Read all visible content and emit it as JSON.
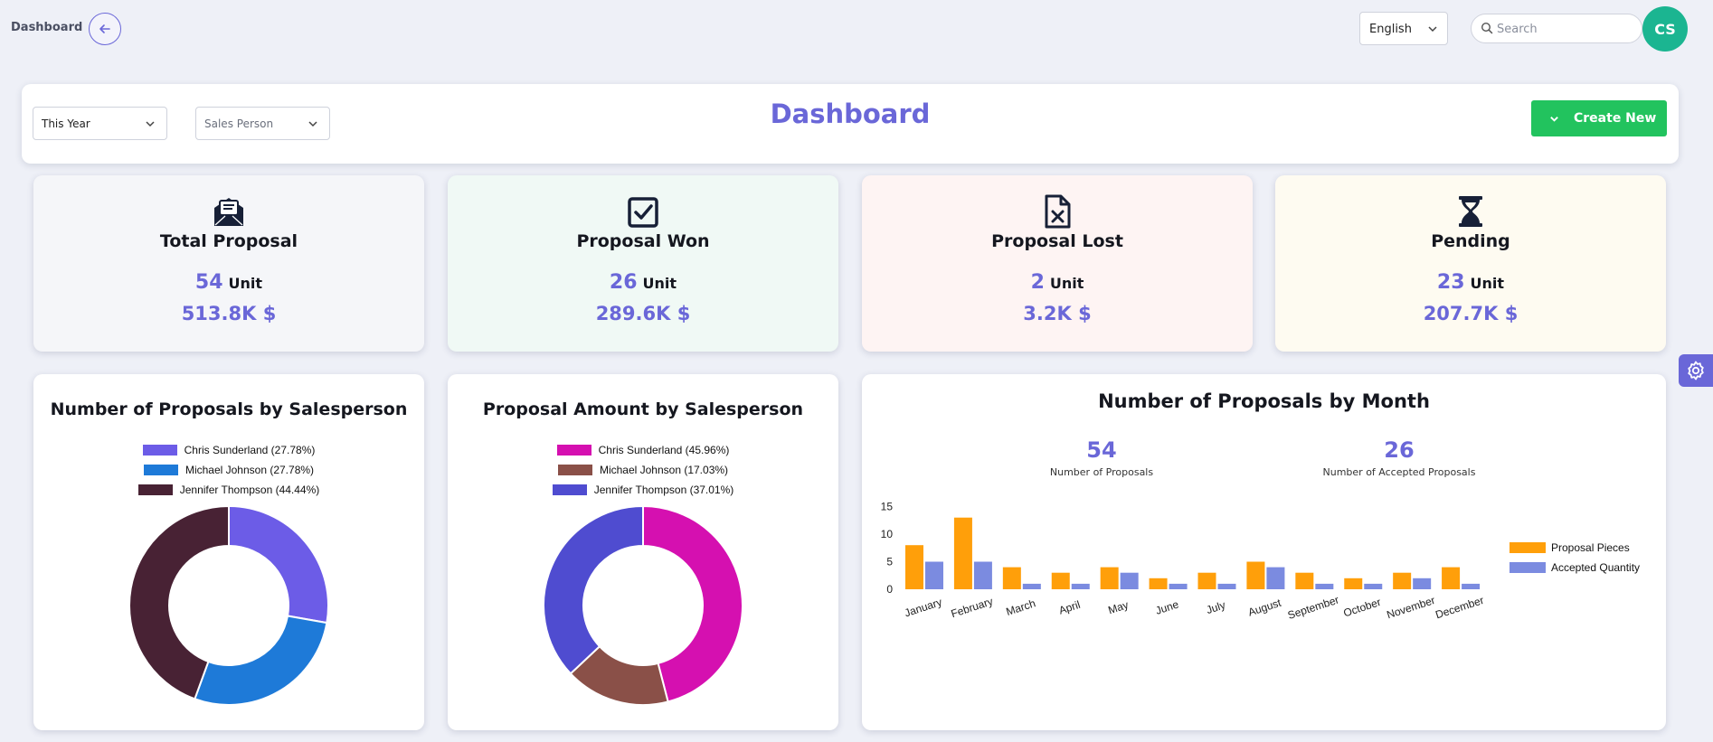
{
  "topbar": {
    "breadcrumb": "Dashboard",
    "language": "English",
    "search_placeholder": "Search",
    "avatar_initials": "CS"
  },
  "header": {
    "period_filter": "This Year",
    "salesperson_filter_placeholder": "Sales Person",
    "title": "Dashboard",
    "create_label": "Create New"
  },
  "stats": [
    {
      "title": "Total Proposal",
      "count": "54",
      "unit": "Unit",
      "amount": "513.8K $",
      "icon": "envelope-open-icon",
      "bg": "#f5f6f9"
    },
    {
      "title": "Proposal Won",
      "count": "26",
      "unit": "Unit",
      "amount": "289.6K $",
      "icon": "checkbox-checked-icon",
      "bg": "#f0f9f5"
    },
    {
      "title": "Proposal Lost",
      "count": "2",
      "unit": "Unit",
      "amount": "3.2K $",
      "icon": "file-x-icon",
      "bg": "#fef4f3"
    },
    {
      "title": "Pending",
      "count": "23",
      "unit": "Unit",
      "amount": "207.7K $",
      "icon": "hourglass-icon",
      "bg": "#fefbf1"
    }
  ],
  "chart_data": [
    {
      "type": "pie",
      "title": "Number of Proposals by Salesperson",
      "donut": true,
      "labels": [
        "Chris Sunderland (27.78%)",
        "Michael Johnson (27.78%)",
        "Jennifer Thompson (44.44%)"
      ],
      "values": [
        27.78,
        27.78,
        44.44
      ],
      "colors": [
        "#6c5ce7",
        "#1e7ad8",
        "#482234"
      ]
    },
    {
      "type": "pie",
      "title": "Proposal Amount by Salesperson",
      "donut": true,
      "labels": [
        "Chris Sunderland (45.96%)",
        "Michael Johnson (17.03%)",
        "Jennifer Thompson (37.01%)"
      ],
      "values": [
        45.96,
        17.03,
        37.01
      ],
      "colors": [
        "#d510b0",
        "#8a5048",
        "#4f4cd0"
      ]
    },
    {
      "type": "bar",
      "title": "Number of Proposals by Month",
      "summary": [
        {
          "value": "54",
          "label": "Number of Proposals"
        },
        {
          "value": "26",
          "label": "Number of Accepted Proposals"
        }
      ],
      "categories": [
        "January",
        "February",
        "March",
        "April",
        "May",
        "June",
        "July",
        "August",
        "September",
        "October",
        "November",
        "December"
      ],
      "series": [
        {
          "name": "Proposal Pieces",
          "color": "#ff9f0a",
          "values": [
            8,
            13,
            4,
            3,
            4,
            2,
            3,
            5,
            3,
            2,
            3,
            4
          ]
        },
        {
          "name": "Accepted Quantity",
          "color": "#7b8be0",
          "values": [
            5,
            5,
            1,
            1,
            3,
            1,
            1,
            4,
            1,
            1,
            2,
            1
          ]
        }
      ],
      "yticks": [
        "0",
        "5",
        "10",
        "15"
      ],
      "ylim": [
        0,
        15
      ],
      "legend": "right"
    }
  ]
}
